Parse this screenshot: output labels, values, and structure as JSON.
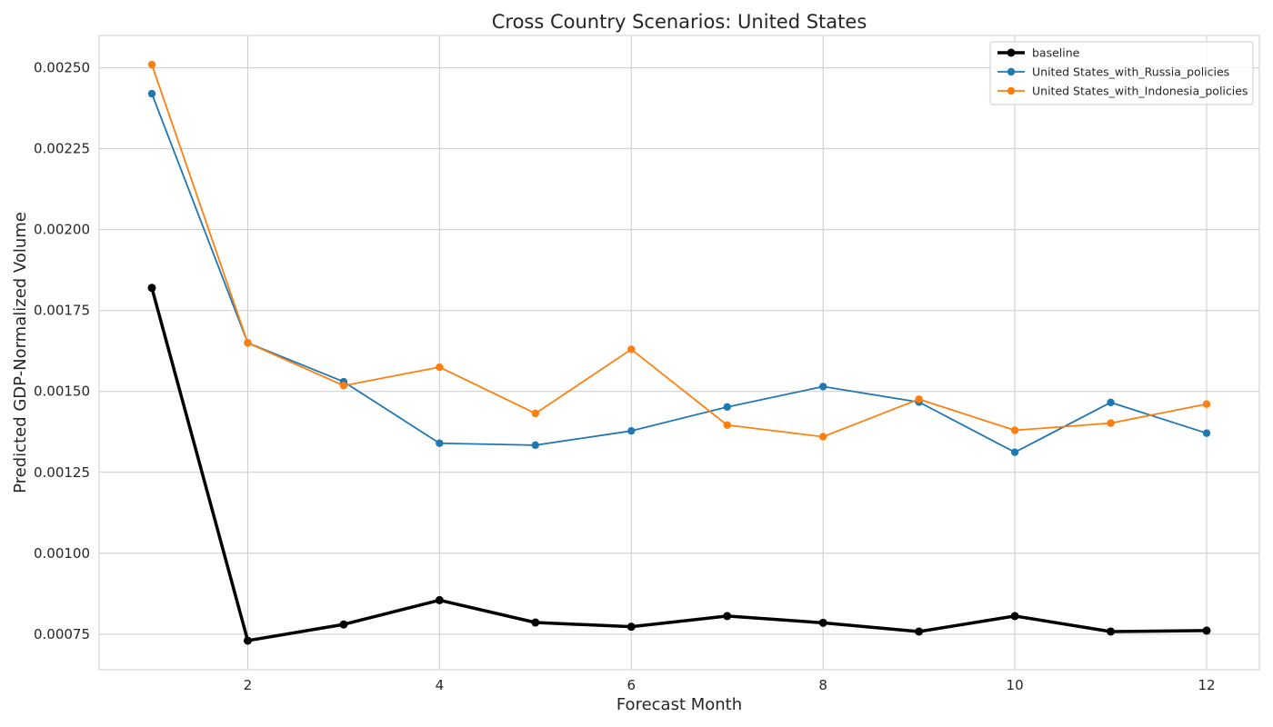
{
  "chart_data": {
    "type": "line",
    "title": "Cross Country Scenarios: United States",
    "xlabel": "Forecast Month",
    "ylabel": "Predicted GDP-Normalized Volume",
    "x": [
      1,
      2,
      3,
      4,
      5,
      6,
      7,
      8,
      9,
      10,
      11,
      12
    ],
    "xlim": [
      0.45,
      12.55
    ],
    "ylim": [
      0.00064,
      0.0026
    ],
    "xticks": [
      2,
      4,
      6,
      8,
      10,
      12
    ],
    "xtick_labels": [
      "2",
      "4",
      "6",
      "8",
      "10",
      "12"
    ],
    "yticks": [
      0.00075,
      0.001,
      0.00125,
      0.0015,
      0.00175,
      0.002,
      0.00225,
      0.0025
    ],
    "ytick_labels": [
      "0.00075",
      "0.00100",
      "0.00125",
      "0.00150",
      "0.00175",
      "0.00200",
      "0.00225",
      "0.00250"
    ],
    "grid": true,
    "legend_position": "top-right",
    "series": [
      {
        "name": "baseline",
        "color": "#000000",
        "values": [
          0.00182,
          0.00073,
          0.00078,
          0.000855,
          0.000786,
          0.000773,
          0.000806,
          0.000785,
          0.000758,
          0.000806,
          0.000758,
          0.000761
        ]
      },
      {
        "name": "United States_with_Russia_policies",
        "color": "#1f77b4",
        "values": [
          0.00242,
          0.00165,
          0.00153,
          0.00134,
          0.001334,
          0.001378,
          0.001452,
          0.001515,
          0.001467,
          0.001312,
          0.001466,
          0.001371
        ]
      },
      {
        "name": "United States_with_Indonesia_policies",
        "color": "#ff7f0e",
        "values": [
          0.00251,
          0.00165,
          0.001518,
          0.001575,
          0.001432,
          0.00163,
          0.001396,
          0.00136,
          0.001476,
          0.00138,
          0.001402,
          0.001461
        ]
      }
    ]
  }
}
